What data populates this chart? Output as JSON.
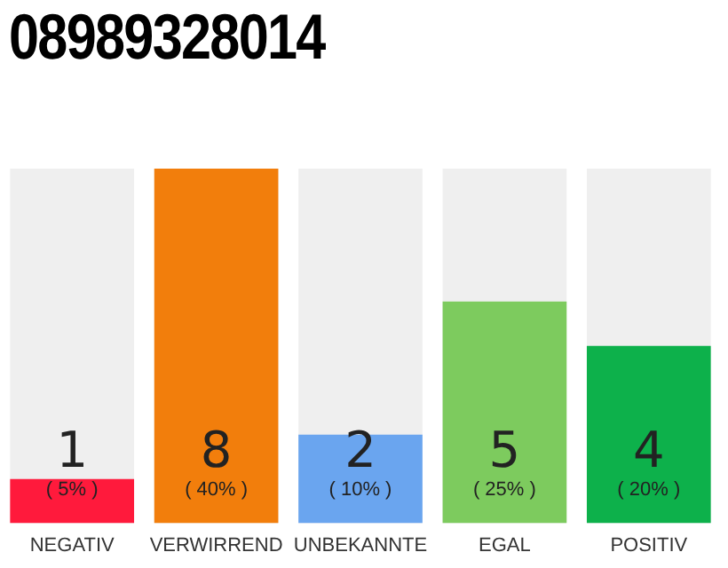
{
  "chart_data": {
    "type": "bar",
    "title": "08989328014",
    "categories": [
      "NEGATIV",
      "VERWIRREND",
      "UNBEKANNTE",
      "EGAL",
      "POSITIV"
    ],
    "values": [
      1,
      8,
      2,
      5,
      4
    ],
    "colors": [
      "#ff1a3c",
      "#f27e0c",
      "#6aa5ef",
      "#7dcb5e",
      "#0db14b"
    ],
    "ylim": [
      0,
      8
    ],
    "tick_labels": "x",
    "grid": false,
    "legend": false,
    "data_labels": true,
    "annotations": [
      "( 5% )",
      "( 40% )",
      "( 10% )",
      "( 25% )",
      "( 20% )"
    ]
  }
}
